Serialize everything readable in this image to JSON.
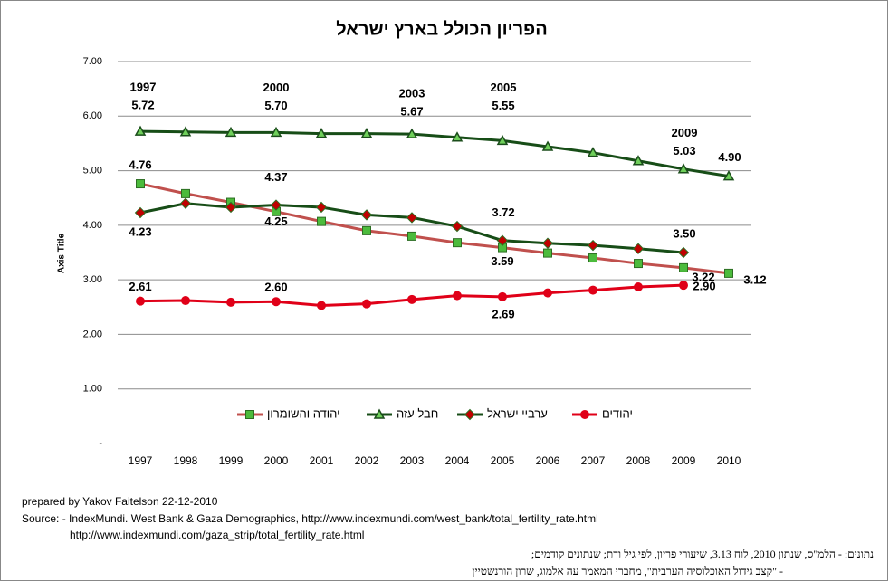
{
  "chart_data": {
    "type": "line",
    "title": "הפריון הכולל בארץ ישראל",
    "y_label": "Axis Title",
    "categories": [
      "1997",
      "1998",
      "1999",
      "2000",
      "2001",
      "2002",
      "2003",
      "2004",
      "2005",
      "2006",
      "2007",
      "2008",
      "2009",
      "2010"
    ],
    "ylim": [
      0,
      7
    ],
    "yticks": [
      {
        "value": 0,
        "label": "-"
      },
      {
        "value": 1,
        "label": "1.00"
      },
      {
        "value": 2,
        "label": "2.00"
      },
      {
        "value": 3,
        "label": "3.00"
      },
      {
        "value": 4,
        "label": "4.00"
      },
      {
        "value": 5,
        "label": "5.00"
      },
      {
        "value": 6,
        "label": "6.00"
      },
      {
        "value": 7,
        "label": "7.00"
      }
    ],
    "grid": true,
    "legend": "bottom",
    "series": [
      {
        "name": "יהודה והשומרון",
        "color": "#c0504d",
        "marker": "square",
        "marker_color": "#4cbb3c",
        "values": [
          4.76,
          4.58,
          4.42,
          4.25,
          4.07,
          3.9,
          3.8,
          3.68,
          3.59,
          3.49,
          3.4,
          3.3,
          3.22,
          3.12
        ],
        "value_labels": [
          "4.76",
          null,
          null,
          "4.25",
          null,
          null,
          null,
          null,
          "3.59",
          null,
          null,
          null,
          "3.22",
          "3.12"
        ]
      },
      {
        "name": "חבל עזה",
        "color": "#174d17",
        "marker": "triangle",
        "marker_color": "#6fcf5a",
        "values": [
          5.72,
          5.71,
          5.7,
          5.7,
          5.68,
          5.68,
          5.67,
          5.61,
          5.55,
          5.44,
          5.33,
          5.18,
          5.03,
          4.9
        ],
        "value_labels": [
          "5.72",
          null,
          null,
          "5.70",
          null,
          null,
          "5.67",
          null,
          "5.55",
          null,
          null,
          null,
          "5.03",
          "4.90"
        ]
      },
      {
        "name": "ערביי ישראל",
        "color": "#174d17",
        "marker": "diamond",
        "marker_color": "#c00000",
        "values": [
          4.23,
          4.4,
          4.33,
          4.37,
          4.33,
          4.19,
          4.14,
          3.98,
          3.72,
          3.67,
          3.63,
          3.57,
          3.5,
          null
        ],
        "value_labels": [
          "4.23",
          null,
          null,
          "4.37",
          null,
          null,
          null,
          null,
          "3.72",
          null,
          null,
          null,
          "3.50",
          null
        ]
      },
      {
        "name": "יהודים",
        "color": "#e00018",
        "marker": "circle",
        "marker_color": "#e00018",
        "values": [
          2.61,
          2.62,
          2.59,
          2.6,
          2.53,
          2.56,
          2.64,
          2.71,
          2.69,
          2.76,
          2.81,
          2.87,
          2.9,
          null
        ],
        "value_labels": [
          "2.61",
          null,
          null,
          "2.60",
          null,
          null,
          null,
          null,
          "2.69",
          null,
          null,
          null,
          "2.90",
          null
        ]
      }
    ],
    "annotations": [
      "1997",
      "2000",
      "2003",
      "2005",
      "2009"
    ],
    "credit": "prepared by Yakov Faitelson 22-12-2010",
    "sources": [
      "Source: - IndexMundi. West Bank & Gaza  Demographics,  http://www.indexmundi.com/west_bank/total_fertility_rate.html",
      "http://www.indexmundi.com/gaza_strip/total_fertility_rate.html"
    ],
    "notes": [
      "נתונים: - הלמ\"ס, שנתון 2010, לוח 3.13, שיעורי פריון, לפי גיל ודת; שנתונים קודמים;",
      "- \"קצב גידול האוכלוסיה הערבית\", מחברי המאמר עה אלמוג, שרון הורנשטיין"
    ]
  }
}
